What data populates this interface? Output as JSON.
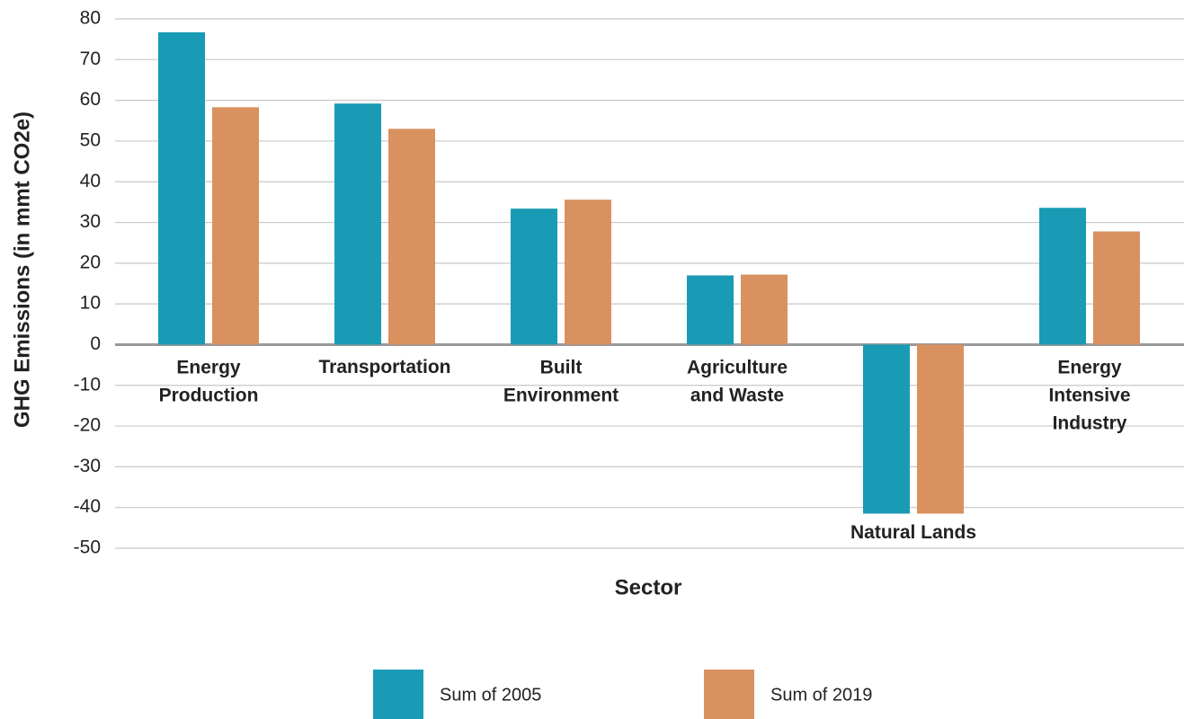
{
  "chart_data": {
    "type": "bar",
    "x_label": "Sector",
    "y_label": "GHG Emissions (in mmt CO2e)",
    "categories": [
      "Energy\nProduction",
      "Transportation",
      "Built\nEnvironment",
      "Agriculture\nand Waste",
      "Natural Lands",
      "Energy\nIntensive\nIndustry"
    ],
    "series": [
      {
        "name": "Sum of 2005",
        "color": "#1a9bb5",
        "values": [
          76.7,
          59.2,
          33.4,
          17.0,
          -41.5,
          33.6
        ]
      },
      {
        "name": "Sum of 2019",
        "color": "#d9915f",
        "values": [
          58.3,
          53.0,
          35.6,
          17.2,
          -41.5,
          27.8
        ]
      }
    ],
    "ylim": [
      -50,
      80
    ],
    "yticks": [
      -50,
      -40,
      -30,
      -20,
      -10,
      0,
      10,
      20,
      30,
      40,
      50,
      60,
      70,
      80
    ],
    "grid": true,
    "legend": "bottom"
  }
}
